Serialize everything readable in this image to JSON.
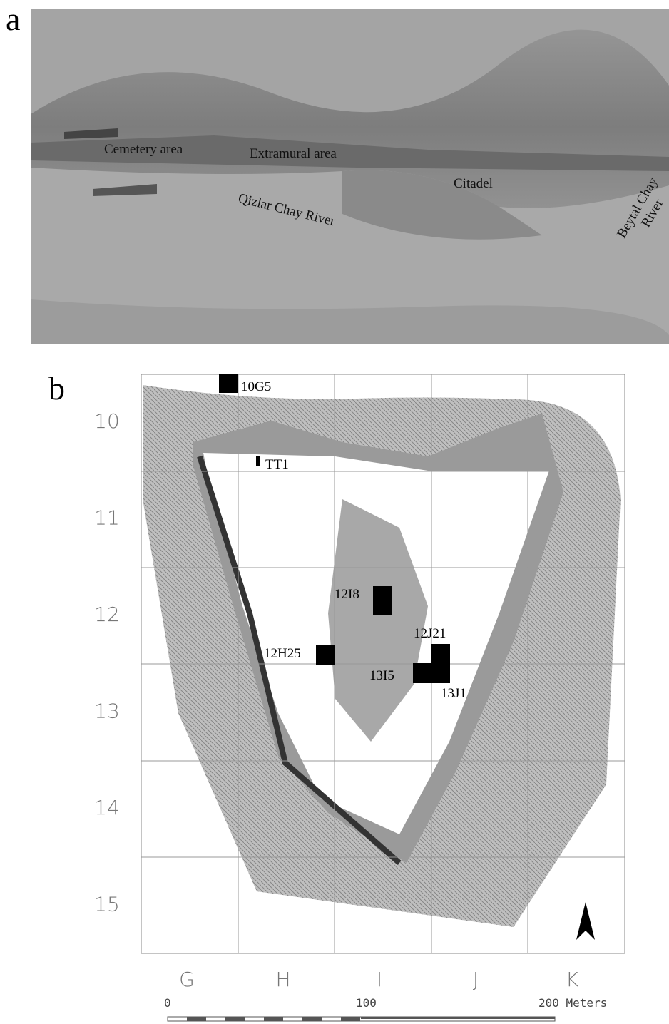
{
  "panel_a": {
    "label": "a",
    "annotations": [
      "Cemetery area",
      "Extramural area",
      "Citadel",
      "Qizlar Chay River"
    ],
    "beytal_lines": [
      "Beytal Chay",
      "River"
    ]
  },
  "panel_b": {
    "label": "b",
    "row_labels": [
      "10",
      "11",
      "12",
      "13",
      "14",
      "15"
    ],
    "column_labels": [
      "G",
      "H",
      "I",
      "J",
      "K"
    ],
    "trenches": [
      "10G5",
      "TT1",
      "12I8",
      "12J21",
      "12H25",
      "13I5",
      "13J1"
    ],
    "scale_labels": [
      "0",
      "100",
      "200 Meters"
    ]
  }
}
